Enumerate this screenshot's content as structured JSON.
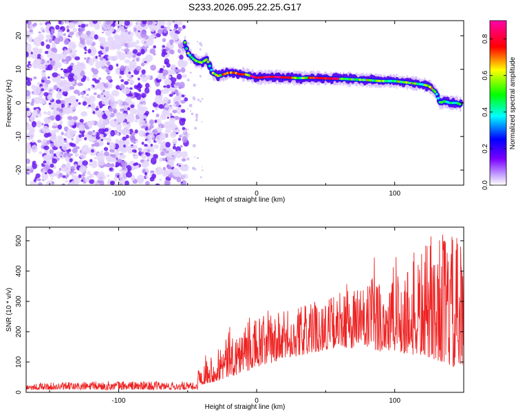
{
  "chart_data": {
    "title": "S233.2026.095.22.25.G17",
    "charts": [
      {
        "type": "heatmap",
        "xlabel": "Height of straight line (km)",
        "ylabel": "Frequency (Hz)",
        "xlim": [
          -167,
          150
        ],
        "ylim": [
          -24.5,
          24.5
        ],
        "xticks": [
          -100,
          0,
          100
        ],
        "yticks": [
          -20,
          -10,
          0,
          10,
          20
        ],
        "noise_region_x": [
          -167,
          -54
        ],
        "ridge": {
          "x": [
            -52,
            -50,
            -47,
            -44,
            -40,
            -36,
            -34,
            -32,
            -28,
            -24,
            -20,
            -16,
            -12,
            -8,
            -4,
            0,
            10,
            20,
            30,
            40,
            50,
            60,
            70,
            80,
            90,
            100,
            110,
            120,
            125,
            130,
            133,
            136,
            140,
            145,
            148
          ],
          "y": [
            18,
            15,
            13.5,
            12.5,
            12,
            13,
            11,
            9,
            8,
            8.5,
            9,
            9,
            8.5,
            8.5,
            8,
            7.5,
            7.8,
            7.6,
            7.4,
            7.5,
            7.3,
            7.2,
            7,
            6.8,
            6.5,
            6.5,
            6,
            5.5,
            5,
            3,
            0,
            0.5,
            0,
            0,
            -0.5
          ]
        },
        "colorbar": {
          "label": "Normalized spectral amplitude",
          "ticks": [
            0.0,
            0.2,
            0.4,
            0.6,
            0.8
          ],
          "range": [
            0,
            0.9
          ],
          "colormap": [
            "#ffffff",
            "#7a00ff",
            "#0000ff",
            "#00ffff",
            "#00ff00",
            "#ffff00",
            "#ff0000",
            "#ff00ff"
          ]
        }
      },
      {
        "type": "line",
        "xlabel": "Height of straight line (km)",
        "ylabel": "SNR (10 * v/v)",
        "xlim": [
          -167,
          150
        ],
        "ylim": [
          0,
          545
        ],
        "xticks": [
          -100,
          0,
          100
        ],
        "yticks": [
          0,
          100,
          200,
          300,
          400,
          500
        ],
        "line_color": "#ee2222",
        "envelope": {
          "x": [
            -167,
            -100,
            -60,
            -43,
            -42,
            -30,
            -20,
            0,
            20,
            40,
            60,
            80,
            100,
            120,
            135,
            150
          ],
          "low": [
            8,
            8,
            8,
            8,
            25,
            35,
            50,
            80,
            110,
            130,
            150,
            140,
            130,
            120,
            100,
            60
          ],
          "high": [
            30,
            38,
            35,
            32,
            95,
            140,
            200,
            250,
            270,
            300,
            330,
            380,
            420,
            480,
            540,
            500
          ]
        }
      }
    ]
  }
}
